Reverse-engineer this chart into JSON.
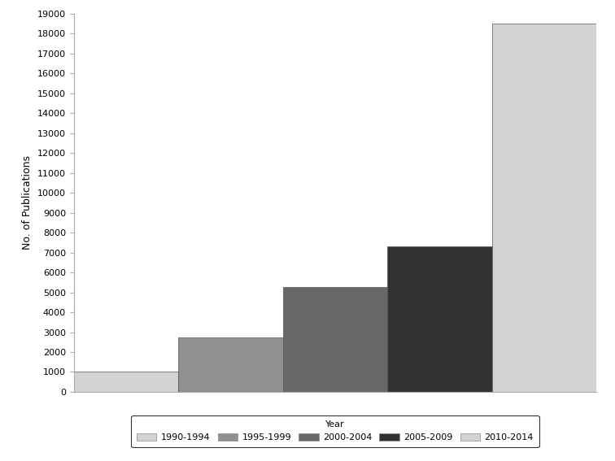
{
  "categories": [
    "1990-1994",
    "1995-1999",
    "2000-2004",
    "2005-2009",
    "2010-2014"
  ],
  "values": [
    1000,
    2750,
    5250,
    7300,
    18500
  ],
  "bar_colors": [
    "#d3d3d3",
    "#909090",
    "#686868",
    "#323232",
    "#d3d3d3"
  ],
  "ylabel": "No. of Publications",
  "ylim": [
    0,
    19000
  ],
  "ytick_step": 1000,
  "legend_title": "Year",
  "background_color": "#ffffff",
  "edge_color": "#555555"
}
